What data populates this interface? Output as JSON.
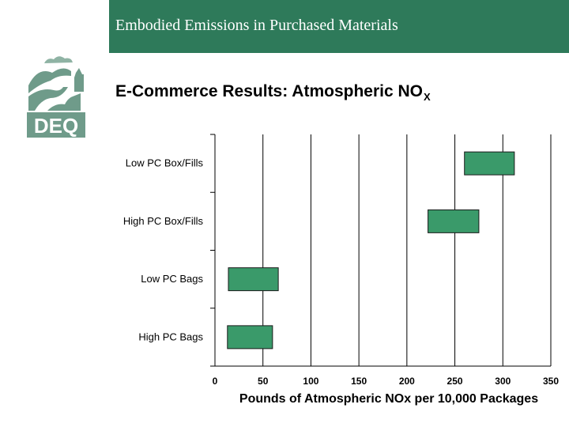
{
  "header": {
    "banner_title": "Embodied Emissions in Purchased Materials",
    "logo_text": "DEQ",
    "logo_color": "#6f9b8a"
  },
  "slide": {
    "title_main": "E-Commerce Results: Atmospheric NO",
    "title_subscript": "X"
  },
  "colors": {
    "banner": "#2e7a5a",
    "bar_fill": "#3a9a6a",
    "bar_stroke": "#1a1a1a",
    "grid": "#000000"
  },
  "chart_data": {
    "type": "bar",
    "orientation": "horizontal",
    "floating": true,
    "categories": [
      "Low PC Box/Fills",
      "High PC Box/Fills",
      "Low PC Bags",
      "High PC Bags"
    ],
    "ranges": [
      [
        260,
        312
      ],
      [
        222,
        275
      ],
      [
        14,
        66
      ],
      [
        13,
        60
      ]
    ],
    "xlabel": "Pounds of Atmospheric NOx per 10,000 Packages",
    "xlim": [
      0,
      350
    ],
    "xticks": [
      0,
      50,
      100,
      150,
      200,
      250,
      300,
      350
    ],
    "grid": true
  }
}
